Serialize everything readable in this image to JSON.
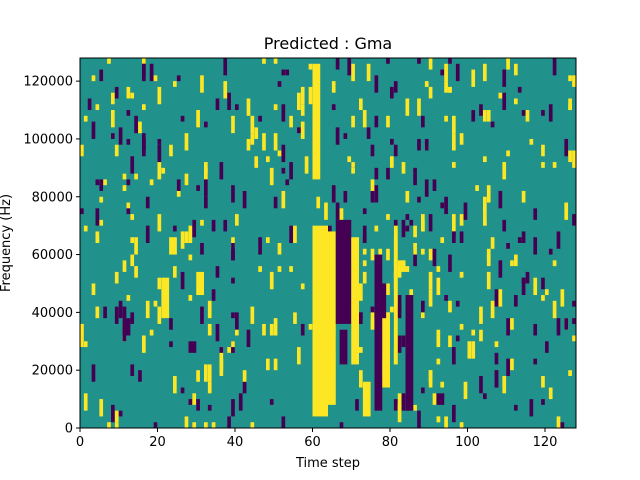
{
  "chart_data": {
    "type": "heatmap",
    "title": "Predicted : Gma",
    "xlabel": "Time step",
    "ylabel": "Frequency (Hz)",
    "xlim": [
      0,
      128
    ],
    "ylim": [
      0,
      128000
    ],
    "xticks": [
      0,
      20,
      40,
      60,
      80,
      100,
      120
    ],
    "yticks": [
      0,
      20000,
      40000,
      60000,
      80000,
      100000,
      120000
    ],
    "xtick_labels": [
      "0",
      "20",
      "40",
      "60",
      "80",
      "100",
      "120"
    ],
    "ytick_labels": [
      "0",
      "20000",
      "40000",
      "60000",
      "80000",
      "100000",
      "120000"
    ],
    "grid": false,
    "colormap": "viridis",
    "colors": {
      "background": "#21918c",
      "high": "#fde725",
      "low": "#440154"
    },
    "dominant_value": "background",
    "regions": [
      {
        "level": "high",
        "x": [
          60,
          64
        ],
        "y": [
          4000,
          70000
        ]
      },
      {
        "level": "high",
        "x": [
          64,
          66
        ],
        "y": [
          8000,
          68000
        ]
      },
      {
        "level": "low",
        "x": [
          66,
          70
        ],
        "y": [
          36000,
          72000
        ]
      },
      {
        "level": "low",
        "x": [
          67,
          69
        ],
        "y": [
          22000,
          34000
        ]
      },
      {
        "level": "high",
        "x": [
          70,
          72
        ],
        "y": [
          22000,
          66000
        ]
      },
      {
        "level": "low",
        "x": [
          76,
          78
        ],
        "y": [
          6000,
          60000
        ]
      },
      {
        "level": "low",
        "x": [
          77,
          79
        ],
        "y": [
          24000,
          50000
        ]
      },
      {
        "level": "high",
        "x": [
          78,
          80
        ],
        "y": [
          14000,
          38000
        ]
      },
      {
        "level": "high",
        "x": [
          81,
          82
        ],
        "y": [
          22000,
          70000
        ]
      },
      {
        "level": "high",
        "x": [
          82,
          84
        ],
        "y": [
          54000,
          58000
        ]
      },
      {
        "level": "low",
        "x": [
          84,
          86
        ],
        "y": [
          6000,
          46000
        ]
      },
      {
        "level": "high",
        "x": [
          60,
          62
        ],
        "y": [
          86000,
          126000
        ]
      },
      {
        "level": "high",
        "x": [
          30,
          32
        ],
        "y": [
          46000,
          54000
        ]
      },
      {
        "level": "high",
        "x": [
          21,
          23
        ],
        "y": [
          38000,
          52000
        ]
      },
      {
        "level": "high",
        "x": [
          23,
          25
        ],
        "y": [
          60000,
          66000
        ]
      },
      {
        "level": "low",
        "x": [
          11,
          13
        ],
        "y": [
          32000,
          38000
        ]
      },
      {
        "level": "low",
        "x": [
          28,
          30
        ],
        "y": [
          26000,
          30000
        ]
      },
      {
        "level": "high",
        "x": [
          73,
          75
        ],
        "y": [
          4000,
          16000
        ]
      },
      {
        "level": "low",
        "x": [
          92,
          94
        ],
        "y": [
          8000,
          12000
        ]
      }
    ]
  }
}
